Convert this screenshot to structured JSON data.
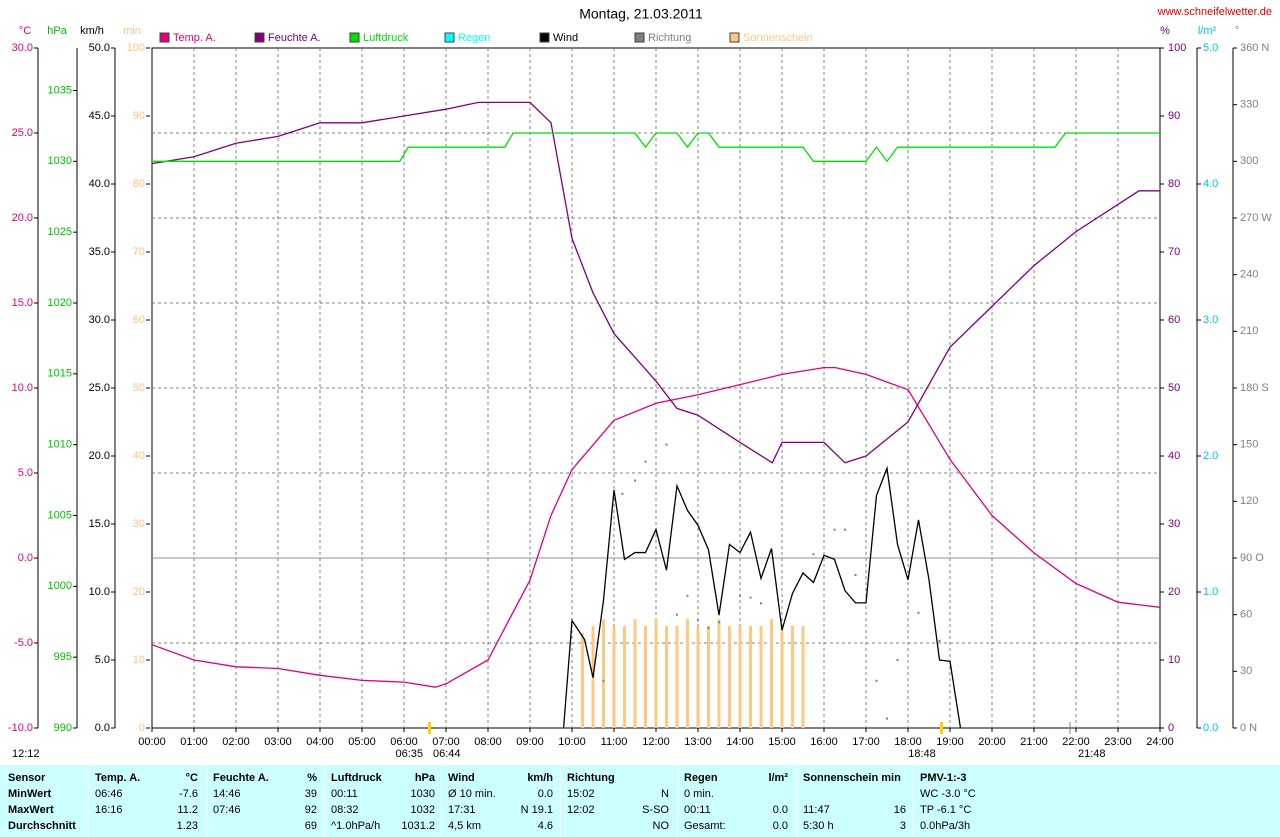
{
  "chart_data": {
    "type": "line",
    "title": "Montag, 21.03.2011",
    "source": "www.schneifelwetter.de",
    "grid": true,
    "xlim": [
      0,
      24
    ],
    "xticks": [
      {
        "value": 0,
        "label": "00:00"
      },
      {
        "value": 1,
        "label": "01:00"
      },
      {
        "value": 2,
        "label": "02:00"
      },
      {
        "value": 3,
        "label": "03:00"
      },
      {
        "value": 4,
        "label": "04:00"
      },
      {
        "value": 5,
        "label": "05:00"
      },
      {
        "value": 6,
        "label": "06:00"
      },
      {
        "value": 7,
        "label": "07:00"
      },
      {
        "value": 8,
        "label": "08:00"
      },
      {
        "value": 9,
        "label": "09:00"
      },
      {
        "value": 10,
        "label": "10:00"
      },
      {
        "value": 11,
        "label": "11:00"
      },
      {
        "value": 12,
        "label": "12:00"
      },
      {
        "value": 13,
        "label": "13:00"
      },
      {
        "value": 14,
        "label": "14:00"
      },
      {
        "value": 15,
        "label": "15:00"
      },
      {
        "value": 16,
        "label": "16:00"
      },
      {
        "value": 17,
        "label": "17:00"
      },
      {
        "value": 18,
        "label": "18:00"
      },
      {
        "value": 19,
        "label": "19:00"
      },
      {
        "value": 20,
        "label": "20:00"
      },
      {
        "value": 21,
        "label": "21:00"
      },
      {
        "value": 22,
        "label": "22:00"
      },
      {
        "value": 23,
        "label": "23:00"
      },
      {
        "value": 24,
        "label": "24:00"
      }
    ],
    "axes": [
      {
        "unit": "°C",
        "color": "#e0007c",
        "ylim": [
          -10,
          30
        ],
        "yticks": [
          {
            "value": -10,
            "label": "-10.0"
          },
          {
            "value": -5,
            "label": "-5.0"
          },
          {
            "value": 0,
            "label": "0.0"
          },
          {
            "value": 5,
            "label": "5.0"
          },
          {
            "value": 10,
            "label": "10.0"
          },
          {
            "value": 15,
            "label": "15.0"
          },
          {
            "value": 20,
            "label": "20.0"
          },
          {
            "value": 25,
            "label": "25.0"
          },
          {
            "value": 30,
            "label": "30.0"
          }
        ]
      },
      {
        "unit": "hPa",
        "color": "#00c000",
        "ylim": [
          990,
          1038
        ],
        "yticks": [
          990,
          995,
          1000,
          1005,
          1010,
          1015,
          1020,
          1025,
          1030,
          1035
        ]
      },
      {
        "unit": "km/h",
        "color": "#000000",
        "ylim": [
          0,
          50
        ],
        "yticks": [
          {
            "value": 0,
            "label": "0.0"
          },
          {
            "value": 5,
            "label": "5.0"
          },
          {
            "value": 10,
            "label": "10.0"
          },
          {
            "value": 15,
            "label": "15.0"
          },
          {
            "value": 20,
            "label": "20.0"
          },
          {
            "value": 25,
            "label": "25.0"
          },
          {
            "value": 30,
            "label": "30.0"
          },
          {
            "value": 35,
            "label": "35.0"
          },
          {
            "value": 40,
            "label": "40.0"
          },
          {
            "value": 45,
            "label": "45.0"
          },
          {
            "value": 50,
            "label": "50.0"
          }
        ]
      },
      {
        "unit": "min",
        "color": "#ffc080",
        "ylim": [
          0,
          100
        ],
        "yticks": [
          0,
          10,
          20,
          30,
          40,
          50,
          60,
          70,
          80,
          90,
          100
        ]
      },
      {
        "unit": "%",
        "color": "#800080",
        "ylim": [
          0,
          100
        ],
        "yticks": [
          0,
          10,
          20,
          30,
          40,
          50,
          60,
          70,
          80,
          90,
          100
        ]
      },
      {
        "unit": "l/m²",
        "color": "#00c8d8",
        "ylim": [
          0,
          5
        ],
        "yticks": [
          {
            "value": 0,
            "label": "0.0"
          },
          {
            "value": 1,
            "label": "1.0"
          },
          {
            "value": 2,
            "label": "2.0"
          },
          {
            "value": 3,
            "label": "3.0"
          },
          {
            "value": 4,
            "label": "4.0"
          },
          {
            "value": 5,
            "label": "5.0"
          }
        ]
      },
      {
        "unit": "°",
        "color": "#808080",
        "ylim": [
          0,
          360
        ],
        "yticks": [
          {
            "value": 0,
            "label": "0 N"
          },
          {
            "value": 30,
            "label": "30"
          },
          {
            "value": 60,
            "label": "60"
          },
          {
            "value": 90,
            "label": "90 O"
          },
          {
            "value": 120,
            "label": "120"
          },
          {
            "value": 150,
            "label": "150"
          },
          {
            "value": 180,
            "label": "180 S"
          },
          {
            "value": 210,
            "label": "210"
          },
          {
            "value": 240,
            "label": "240"
          },
          {
            "value": 270,
            "label": "270 W"
          },
          {
            "value": 300,
            "label": "300"
          },
          {
            "value": 330,
            "label": "330"
          },
          {
            "value": 360,
            "label": "360 N"
          }
        ]
      }
    ],
    "series": [
      {
        "name": "Temp. A.",
        "color": "#e0007c",
        "axis": "°C",
        "kind": "line",
        "x": [
          0,
          1,
          2,
          3,
          4,
          5,
          6,
          6.75,
          7,
          8,
          9,
          9.5,
          10,
          11,
          12,
          13,
          14,
          15,
          16,
          16.27,
          17,
          18,
          19,
          20,
          21,
          22,
          23,
          24
        ],
        "values": [
          -5.1,
          -6.0,
          -6.4,
          -6.5,
          -6.9,
          -7.2,
          -7.3,
          -7.6,
          -7.4,
          -6.0,
          -1.3,
          2.5,
          5.2,
          8.1,
          9.1,
          9.6,
          10.2,
          10.8,
          11.2,
          11.2,
          10.8,
          9.9,
          5.8,
          2.5,
          0.3,
          -1.5,
          -2.6,
          -2.9
        ]
      },
      {
        "name": "Feuchte A.",
        "color": "#800080",
        "axis": "%",
        "kind": "line",
        "x": [
          0,
          1,
          2,
          3,
          4,
          5,
          6,
          7,
          7.77,
          9,
          9.5,
          10,
          10.5,
          11,
          12,
          12.5,
          13,
          14,
          14.77,
          15,
          16,
          16.5,
          17,
          18,
          19,
          20,
          21,
          22,
          23,
          23.5,
          24
        ],
        "values": [
          83,
          84,
          86,
          87,
          89,
          89,
          90,
          91,
          92,
          92,
          89,
          72,
          64,
          58,
          51,
          47,
          46,
          42,
          39,
          42,
          42,
          39,
          40,
          45,
          56,
          62,
          68,
          73,
          77,
          79,
          79
        ]
      },
      {
        "name": "Luftdruck",
        "color": "#00e000",
        "axis": "hPa",
        "kind": "line",
        "x": [
          0,
          5.9,
          6.1,
          8.4,
          8.6,
          11.5,
          11.75,
          12,
          12.5,
          12.75,
          13,
          13.25,
          13.5,
          15.5,
          15.75,
          17,
          17.25,
          17.5,
          17.75,
          21.5,
          21.75,
          24
        ],
        "values": [
          1030,
          1030,
          1031,
          1031,
          1032,
          1032,
          1031,
          1032,
          1032,
          1031,
          1032,
          1032,
          1031,
          1031,
          1030,
          1030,
          1031,
          1030,
          1031,
          1031,
          1032,
          1032
        ]
      },
      {
        "name": "Regen",
        "color": "#00ffff",
        "axis": "l/m²",
        "kind": "line",
        "x": [],
        "values": []
      },
      {
        "name": "Wind",
        "color": "#000000",
        "axis": "km/h",
        "kind": "line",
        "x": [
          9.8,
          10,
          10.3,
          10.5,
          10.75,
          11,
          11.25,
          11.5,
          11.75,
          12,
          12.25,
          12.5,
          12.75,
          13,
          13.25,
          13.5,
          13.75,
          14,
          14.25,
          14.5,
          14.75,
          15,
          15.25,
          15.5,
          15.75,
          16,
          16.25,
          16.5,
          16.75,
          17,
          17.25,
          17.5,
          17.75,
          18,
          18.25,
          18.5,
          18.75,
          19,
          19.25
        ],
        "values": [
          0,
          7.9,
          6.5,
          3.7,
          9.4,
          17.5,
          12.4,
          12.9,
          12.9,
          14.6,
          11.6,
          17.8,
          16,
          14.9,
          13.1,
          8.3,
          13.5,
          12.9,
          14.4,
          11,
          13.2,
          7.2,
          9.9,
          11.4,
          10.7,
          12.7,
          12.4,
          10.1,
          9.2,
          9.2,
          17.1,
          19.1,
          13.5,
          10.9,
          15.3,
          10.9,
          5.0,
          4.9,
          0
        ]
      },
      {
        "name": "Richtung",
        "color": "#808080",
        "axis": "°",
        "kind": "dot",
        "x": [
          10.75,
          11.2,
          11.5,
          11.75,
          12.25,
          12.5,
          12.75,
          13,
          13.25,
          13.5,
          14,
          14.25,
          14.5,
          15.75,
          16.25,
          16.5,
          16.75,
          17.25,
          17.5,
          17.75,
          18.25,
          18.75
        ],
        "values": [
          25,
          124,
          131,
          141,
          150,
          60,
          70,
          57,
          53,
          56,
          70,
          69,
          66,
          92,
          105,
          105,
          81,
          25,
          5,
          36,
          61,
          46
        ]
      },
      {
        "name": "Sonnenschein",
        "color": "#ffc880",
        "axis": "min",
        "kind": "bar",
        "x": [
          10.25,
          10.5,
          10.75,
          11,
          11.25,
          11.5,
          11.75,
          12,
          12.25,
          12.5,
          12.75,
          13,
          13.25,
          13.5,
          13.75,
          14,
          14.25,
          14.5,
          14.75,
          15,
          15.25,
          15.5
        ],
        "values": [
          14,
          15,
          16,
          15,
          15,
          16,
          15,
          16,
          15,
          15,
          16,
          15,
          15,
          16,
          15,
          15,
          15,
          15,
          16,
          15,
          15,
          15
        ]
      }
    ],
    "annotations": [
      "06:35",
      "06:44",
      "18:48",
      "21:48",
      "12:12"
    ]
  },
  "summary_table": {
    "rows": [
      [
        "Sensor",
        "Temp. A.",
        "°C",
        "Feuchte A.",
        "%",
        "Luftdruck",
        "hPa",
        "Wind",
        "km/h",
        "Richtung",
        null,
        "Regen",
        "l/m²",
        "Sonnenschein min",
        null,
        "PMV-1:-3"
      ],
      [
        "MinWert",
        "06:46",
        "-7.6",
        "14:46",
        "39",
        "00:11",
        "1030",
        "Ø 10 min.",
        "0.0",
        "15:02",
        "N",
        "0 min.",
        null,
        null,
        null,
        "WC -3.0 °C"
      ],
      [
        "MaxWert",
        "16:16",
        "11.2",
        "07:46",
        "92",
        "08:32",
        "1032",
        "17:31",
        "N 19.1",
        "12:02",
        "S-SO",
        "00:11",
        "0.0",
        "11:47",
        "16",
        "TP -6.1 °C"
      ],
      [
        "Durchschnitt",
        null,
        "1.23",
        null,
        "69",
        "^1.0hPa/h",
        "1031.2",
        "4,5 km",
        "4.6",
        null,
        "NO",
        "Gesamt:",
        "0.0",
        "5:30 h",
        "3",
        "0.0hPa/3h"
      ]
    ]
  }
}
